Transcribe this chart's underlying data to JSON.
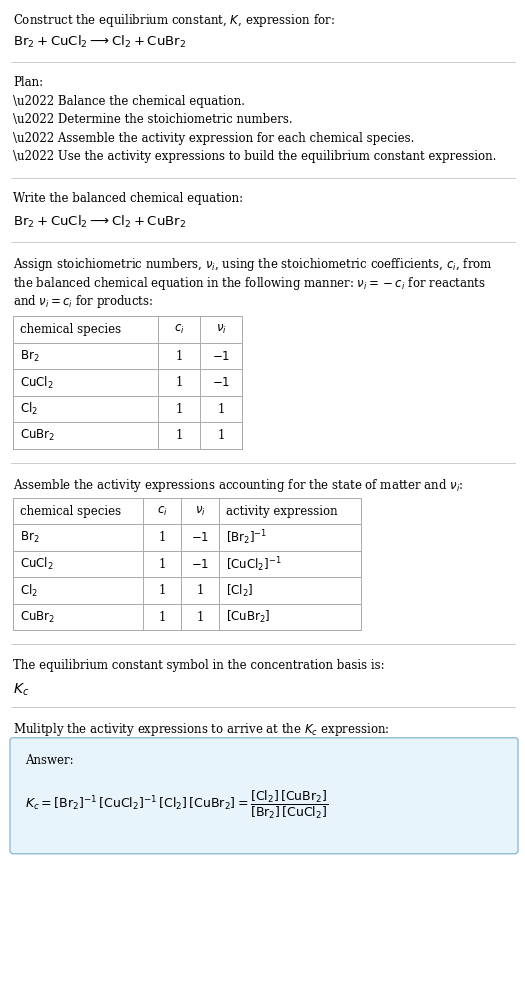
{
  "title_line1": "Construct the equilibrium constant, $K$, expression for:",
  "title_line2": "$\\mathrm{Br_2 + CuCl_2 \\longrightarrow Cl_2 + CuBr_2}$",
  "plan_header": "Plan:",
  "plan_items": [
    "\\u2022 Balance the chemical equation.",
    "\\u2022 Determine the stoichiometric numbers.",
    "\\u2022 Assemble the activity expression for each chemical species.",
    "\\u2022 Use the activity expressions to build the equilibrium constant expression."
  ],
  "section2_header": "Write the balanced chemical equation:",
  "section2_eq": "$\\mathrm{Br_2 + CuCl_2 \\longrightarrow Cl_2 + CuBr_2}$",
  "section3_text": "Assign stoichiometric numbers, $\\nu_i$, using the stoichiometric coefficients, $c_i$, from\nthe balanced chemical equation in the following manner: $\\nu_i = -c_i$ for reactants\nand $\\nu_i = c_i$ for products:",
  "table1_headers": [
    "chemical species",
    "$c_i$",
    "$\\nu_i$"
  ],
  "table1_rows": [
    [
      "$\\mathrm{Br_2}$",
      "1",
      "$-1$"
    ],
    [
      "$\\mathrm{CuCl_2}$",
      "1",
      "$-1$"
    ],
    [
      "$\\mathrm{Cl_2}$",
      "1",
      "1"
    ],
    [
      "$\\mathrm{CuBr_2}$",
      "1",
      "1"
    ]
  ],
  "section4_text": "Assemble the activity expressions accounting for the state of matter and $\\nu_i$:",
  "table2_headers": [
    "chemical species",
    "$c_i$",
    "$\\nu_i$",
    "activity expression"
  ],
  "table2_rows": [
    [
      "$\\mathrm{Br_2}$",
      "1",
      "$-1$",
      "$[\\mathrm{Br_2}]^{-1}$"
    ],
    [
      "$\\mathrm{CuCl_2}$",
      "1",
      "$-1$",
      "$[\\mathrm{CuCl_2}]^{-1}$"
    ],
    [
      "$\\mathrm{Cl_2}$",
      "1",
      "1",
      "$[\\mathrm{Cl_2}]$"
    ],
    [
      "$\\mathrm{CuBr_2}$",
      "1",
      "1",
      "$[\\mathrm{CuBr_2}]$"
    ]
  ],
  "section5_text": "The equilibrium constant symbol in the concentration basis is:",
  "section5_Kc": "$K_c$",
  "section6_text": "Mulitply the activity expressions to arrive at the $K_c$ expression:",
  "answer_label": "Answer:",
  "answer_eq_left": "$K_c = [\\mathrm{Br_2}]^{-1}\\,[\\mathrm{CuCl_2}]^{-1}\\,[\\mathrm{Cl_2}]\\,[\\mathrm{CuBr_2}] = $",
  "answer_frac_num": "$[\\mathrm{Cl_2}]\\,[\\mathrm{CuBr_2}]$",
  "answer_frac_den": "$[\\mathrm{Br_2}]\\,[\\mathrm{CuCl_2}]$",
  "bg_color": "#ffffff",
  "text_color": "#000000",
  "table_border_color": "#aaaaaa",
  "answer_box_facecolor": "#e8f4fc",
  "answer_box_edgecolor": "#90bcd8",
  "separator_color": "#cccccc",
  "fig_width": 5.25,
  "fig_height": 9.96,
  "dpi": 100
}
